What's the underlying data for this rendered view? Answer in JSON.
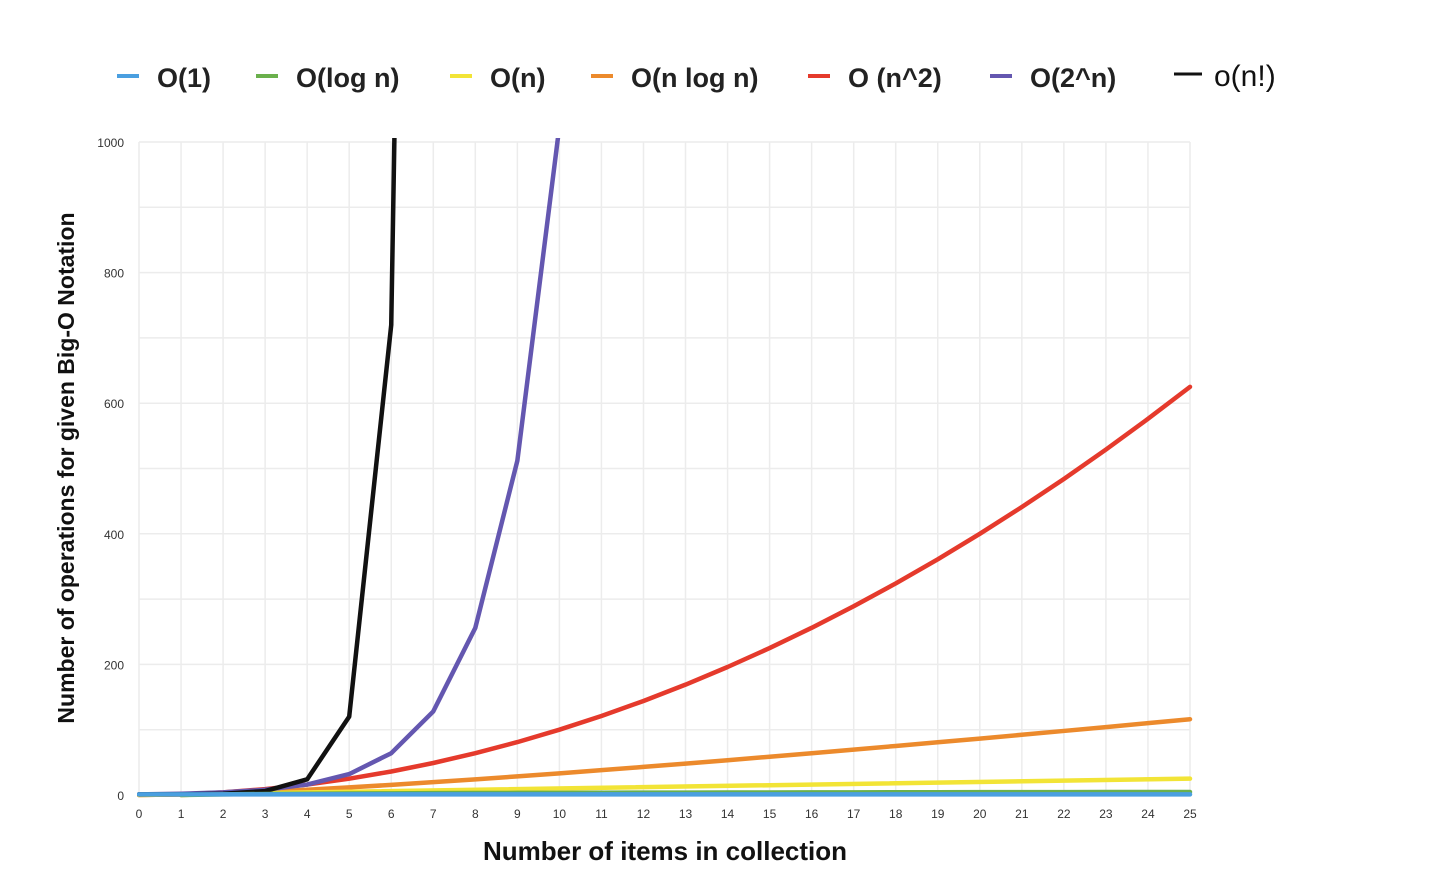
{
  "chart_data": {
    "type": "line",
    "title": "",
    "xlabel": "Number of items in collection",
    "ylabel": "Number of operations for given Big-O Notation",
    "xlim": [
      0,
      25
    ],
    "ylim": [
      0,
      1000
    ],
    "x_ticks": [
      "0",
      "1",
      "2",
      "3",
      "4",
      "5",
      "6",
      "7",
      "8",
      "9",
      "10",
      "11",
      "12",
      "13",
      "14",
      "15",
      "16",
      "17",
      "18",
      "19",
      "20",
      "21",
      "22",
      "23",
      "24",
      "25"
    ],
    "y_ticks": [
      "0",
      "200",
      "400",
      "600",
      "800",
      "1000"
    ],
    "grid": true,
    "legend_position": "top",
    "series": [
      {
        "name": "O(1)",
        "color": "#4a9fe0",
        "points": [
          [
            0,
            1
          ],
          [
            25,
            1
          ]
        ]
      },
      {
        "name": "O(log n)",
        "color": "#6ab04c",
        "points": [
          [
            1,
            0
          ],
          [
            2,
            1
          ],
          [
            3,
            1.58
          ],
          [
            4,
            2
          ],
          [
            5,
            2.32
          ],
          [
            6,
            2.58
          ],
          [
            7,
            2.81
          ],
          [
            8,
            3
          ],
          [
            9,
            3.17
          ],
          [
            10,
            3.32
          ],
          [
            11,
            3.46
          ],
          [
            12,
            3.58
          ],
          [
            13,
            3.7
          ],
          [
            14,
            3.81
          ],
          [
            15,
            3.91
          ],
          [
            16,
            4
          ],
          [
            17,
            4.09
          ],
          [
            18,
            4.17
          ],
          [
            19,
            4.25
          ],
          [
            20,
            4.32
          ],
          [
            21,
            4.39
          ],
          [
            22,
            4.46
          ],
          [
            23,
            4.52
          ],
          [
            24,
            4.58
          ],
          [
            25,
            4.64
          ]
        ]
      },
      {
        "name": "O(n)",
        "color": "#f2e436",
        "points": [
          [
            0,
            0
          ],
          [
            25,
            25
          ]
        ]
      },
      {
        "name": "O(n log n)",
        "color": "#ec8a2c",
        "points": [
          [
            1,
            0
          ],
          [
            2,
            2
          ],
          [
            3,
            4.75
          ],
          [
            4,
            8
          ],
          [
            5,
            11.6
          ],
          [
            6,
            15.5
          ],
          [
            7,
            19.65
          ],
          [
            8,
            24
          ],
          [
            9,
            28.5
          ],
          [
            10,
            33.2
          ],
          [
            11,
            38.05
          ],
          [
            12,
            43
          ],
          [
            13,
            48.1
          ],
          [
            14,
            53.3
          ],
          [
            15,
            58.6
          ],
          [
            16,
            64
          ],
          [
            17,
            69.5
          ],
          [
            18,
            75.1
          ],
          [
            19,
            80.7
          ],
          [
            20,
            86.4
          ],
          [
            21,
            92.2
          ],
          [
            22,
            98.1
          ],
          [
            23,
            104
          ],
          [
            24,
            110
          ],
          [
            25,
            116
          ]
        ]
      },
      {
        "name": "O (n^2)",
        "color": "#e53a2c",
        "points": [
          [
            0,
            0
          ],
          [
            1,
            1
          ],
          [
            2,
            4
          ],
          [
            3,
            9
          ],
          [
            4,
            16
          ],
          [
            5,
            25
          ],
          [
            6,
            36
          ],
          [
            7,
            49
          ],
          [
            8,
            64
          ],
          [
            9,
            81
          ],
          [
            10,
            100
          ],
          [
            11,
            121
          ],
          [
            12,
            144
          ],
          [
            13,
            169
          ],
          [
            14,
            196
          ],
          [
            15,
            225
          ],
          [
            16,
            256
          ],
          [
            17,
            289
          ],
          [
            18,
            324
          ],
          [
            19,
            361
          ],
          [
            20,
            400
          ],
          [
            21,
            441
          ],
          [
            22,
            484
          ],
          [
            23,
            529
          ],
          [
            24,
            576
          ],
          [
            25,
            625
          ]
        ]
      },
      {
        "name": "O(2^n)",
        "color": "#6457b0",
        "points": [
          [
            0,
            1
          ],
          [
            1,
            2
          ],
          [
            2,
            4
          ],
          [
            3,
            8
          ],
          [
            4,
            16
          ],
          [
            5,
            32
          ],
          [
            6,
            64
          ],
          [
            7,
            128
          ],
          [
            8,
            256
          ],
          [
            9,
            512
          ],
          [
            10,
            1024
          ]
        ]
      },
      {
        "name": "O(n!)",
        "color": "#111111",
        "points": [
          [
            0,
            1
          ],
          [
            1,
            1
          ],
          [
            2,
            2
          ],
          [
            3,
            6
          ],
          [
            4,
            24
          ],
          [
            5,
            120
          ],
          [
            6,
            720
          ],
          [
            6.1,
            1100
          ]
        ]
      }
    ]
  }
}
